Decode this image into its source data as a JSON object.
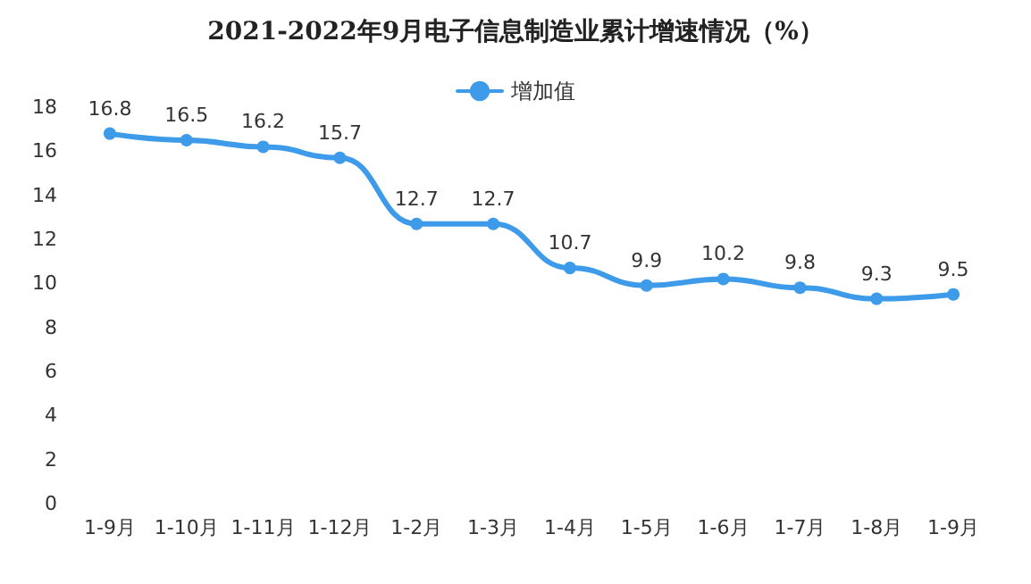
{
  "chart_data": {
    "type": "line",
    "title": "2021-2022年9月电子信息制造业累计增速情况（%）",
    "categories": [
      "1-9月",
      "1-10月",
      "1-11月",
      "1-12月",
      "1-2月",
      "1-3月",
      "1-4月",
      "1-5月",
      "1-6月",
      "1-7月",
      "1-8月",
      "1-9月"
    ],
    "series": [
      {
        "name": "增加值",
        "color": "#3d9be9",
        "values": [
          16.8,
          16.5,
          16.2,
          15.7,
          12.7,
          12.7,
          10.7,
          9.9,
          10.2,
          9.8,
          9.3,
          9.5
        ]
      }
    ],
    "ylim": [
      0,
      18
    ],
    "yticks": [
      0,
      2,
      4,
      6,
      8,
      10,
      12,
      14,
      16,
      18
    ],
    "grid": false,
    "legend": "top",
    "marker": "circle",
    "line_style": "solid",
    "data_labels": true
  }
}
